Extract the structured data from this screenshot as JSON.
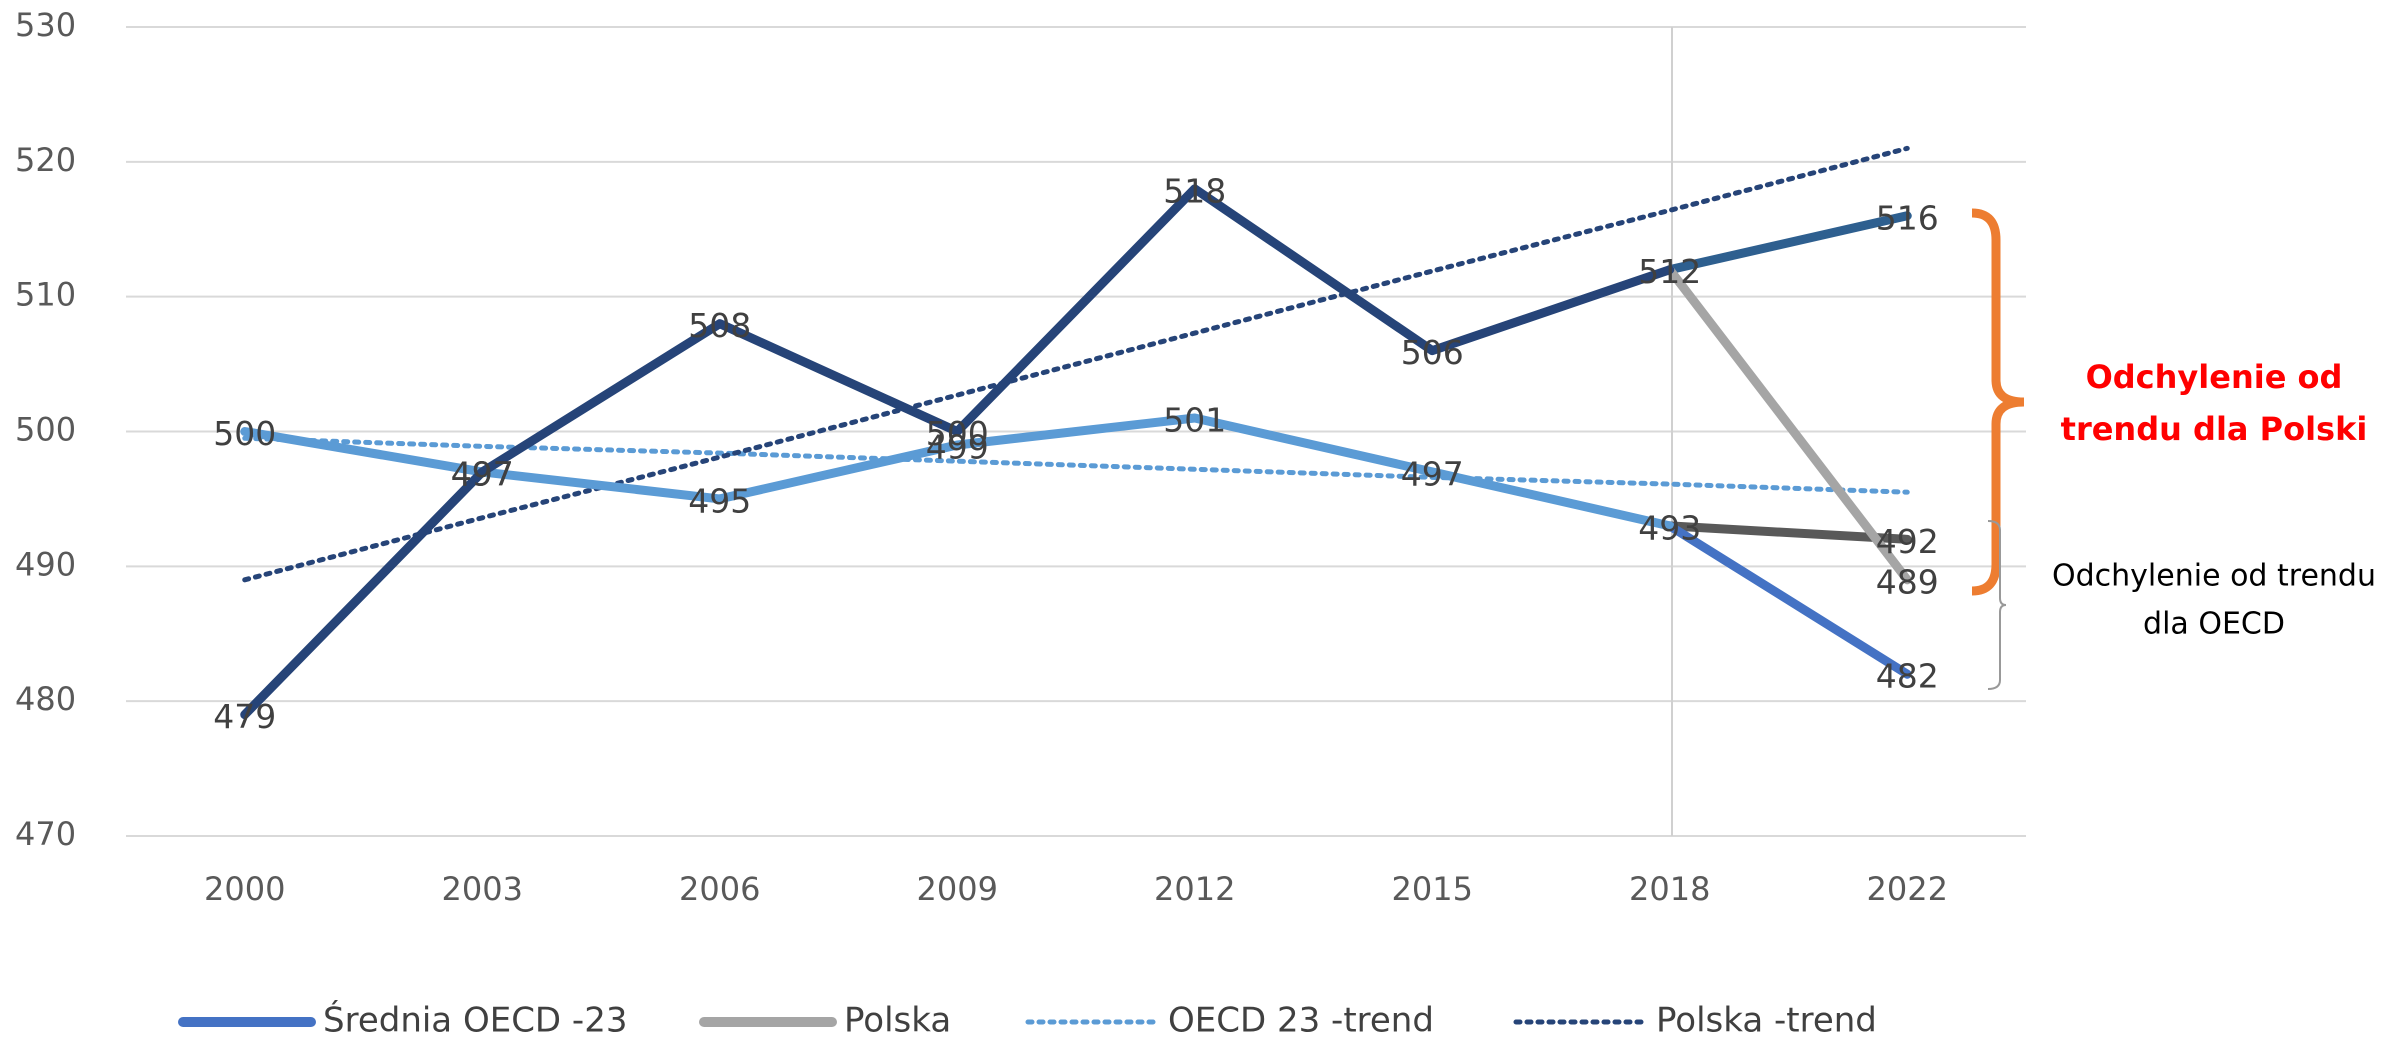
{
  "chart_data": {
    "type": "line",
    "categories": [
      "2000",
      "2003",
      "2006",
      "2009",
      "2012",
      "2015",
      "2018",
      "2022"
    ],
    "ylim": [
      470,
      530
    ],
    "yticks": [
      470,
      480,
      490,
      500,
      510,
      520,
      530
    ],
    "grid": true,
    "legend": "bottom",
    "series": [
      {
        "name": "Średnia OECD -23",
        "color": "#4472c4",
        "line_color": "#5b9bd5",
        "values": [
          500,
          497,
          495,
          499,
          501,
          497,
          493,
          482
        ]
      },
      {
        "name": "Polska",
        "color": "#a5a5a5",
        "line_color": "#264478",
        "values": [
          479,
          497,
          508,
          500,
          518,
          506,
          512,
          489
        ]
      },
      {
        "name": "OECD 23 -trend",
        "color": "#5b9bd5",
        "dotted": true,
        "values": [
          499.5,
          498.9,
          498.4,
          497.8,
          497.2,
          496.6,
          496.1,
          495.5
        ]
      },
      {
        "name": "Polska -trend",
        "color": "#264478",
        "dotted": true,
        "values": [
          489,
          493.6,
          498.1,
          502.7,
          507.3,
          511.9,
          516.4,
          521
        ]
      }
    ],
    "extensions": [
      {
        "color": "#2e5f8f",
        "values": [
          null,
          null,
          null,
          null,
          null,
          null,
          512,
          516
        ]
      },
      {
        "color": "#595959",
        "values": [
          null,
          null,
          null,
          null,
          null,
          null,
          493,
          492
        ]
      }
    ],
    "annotations": [
      {
        "lines": [
          "Odchylenie od",
          "trendu dla Polski"
        ],
        "color": "#ff0000"
      },
      {
        "lines": [
          "Odchylenie od trendu",
          "dla OECD"
        ],
        "color": "#000000"
      }
    ]
  }
}
